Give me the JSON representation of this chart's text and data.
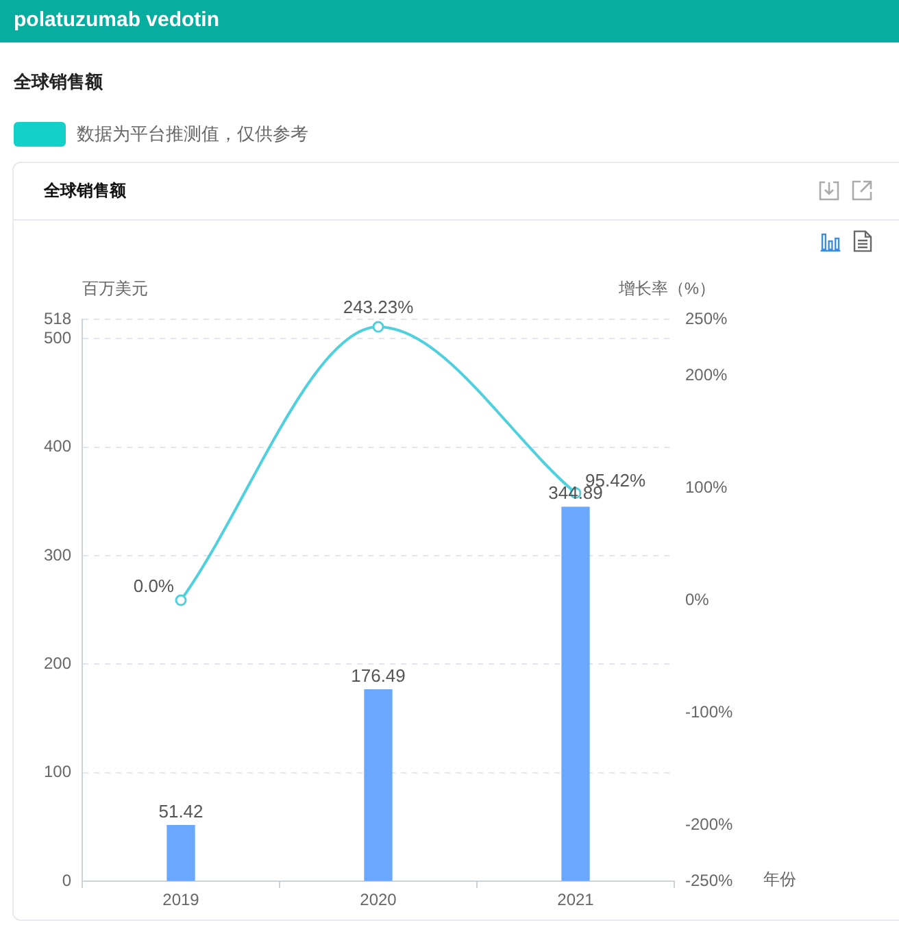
{
  "chart_data": {
    "type": "bar",
    "title": "polatuzumab vedotin",
    "subtitle": "全球销售额",
    "annotations": [
      "数据为平台推测值，仅供参考",
      "全球销售额"
    ],
    "xlabel": "年份",
    "ylabel": "百万美元",
    "y2label": "增长率（%）",
    "categories": [
      "2019",
      "2020",
      "2021"
    ],
    "series": [
      {
        "color": "#6aa8ff",
        "values": [
          51.42,
          176.49,
          344.89
        ],
        "value_labels": [
          "51.42",
          "176.49",
          "344.89"
        ]
      },
      {
        "type": "line",
        "axis": "y2",
        "color": "#4fd0dc",
        "values": [
          0,
          243.23,
          95.42
        ],
        "value_labels": [
          "0.0%",
          "243.23%",
          "95.42%"
        ]
      }
    ],
    "ylim": [
      0,
      518
    ],
    "yticks": [
      0,
      100,
      200,
      300,
      400,
      500,
      518
    ],
    "y2lim": [
      -250,
      250
    ],
    "y2ticks": [
      {
        "value": -250,
        "label": "-250%"
      },
      {
        "value": -200,
        "label": "-200%"
      },
      {
        "value": -100,
        "label": "-100%"
      },
      {
        "value": 0,
        "label": "0%"
      },
      {
        "value": 100,
        "label": "100%"
      },
      {
        "value": 200,
        "label": "200%"
      },
      {
        "value": 250,
        "label": "250%"
      }
    ],
    "grid": "y",
    "marker": "circle"
  }
}
